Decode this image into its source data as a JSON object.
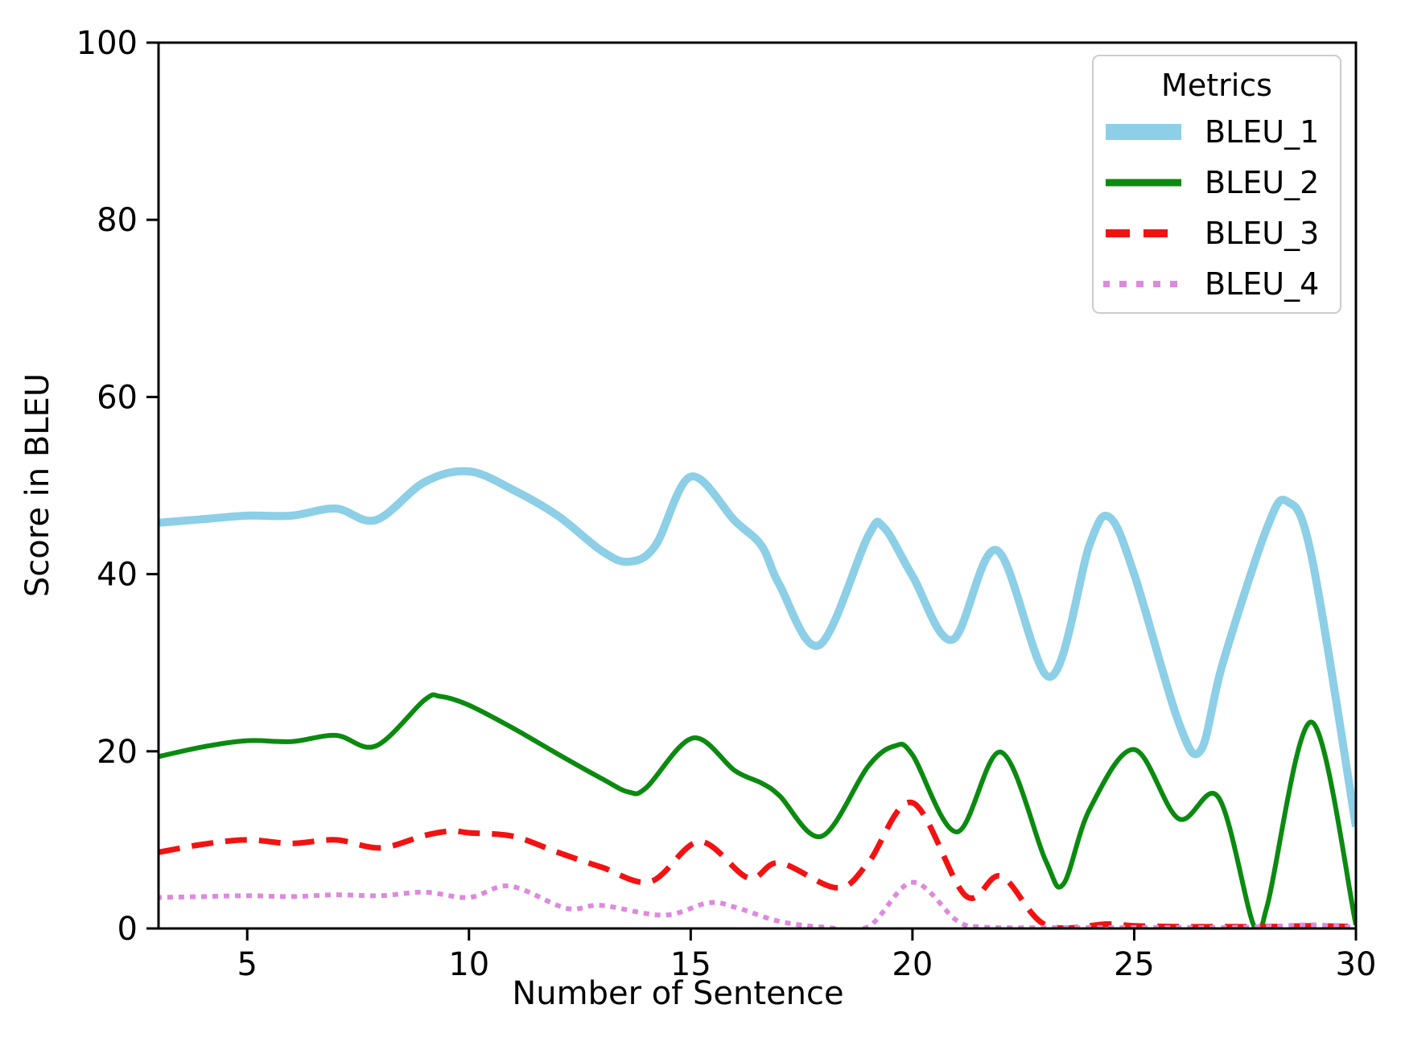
{
  "figure": {
    "background": "#ffffff",
    "text_color": "#000000",
    "axis_color": "#000000"
  },
  "legend": {
    "title": "Metrics"
  },
  "chart_data": {
    "type": "line",
    "title": "",
    "xlabel": "Number of Sentence",
    "ylabel": "Score in BLEU",
    "xlim": [
      3,
      30
    ],
    "ylim": [
      0,
      100
    ],
    "xticks": [
      5,
      10,
      15,
      20,
      25,
      30
    ],
    "yticks": [
      0,
      20,
      40,
      60,
      80,
      100
    ],
    "grid": false,
    "legend_title": "Metrics",
    "legend_position": "upper right",
    "series": [
      {
        "name": "BLEU_1",
        "color": "#8ccfe6",
        "style": "solid",
        "width": 10,
        "points": [
          [
            3,
            45.8
          ],
          [
            4,
            46.2
          ],
          [
            5,
            46.6
          ],
          [
            6,
            46.6
          ],
          [
            7,
            47.4
          ],
          [
            7.9,
            46.1
          ],
          [
            9,
            50.4
          ],
          [
            10,
            51.6
          ],
          [
            11,
            49.5
          ],
          [
            12,
            46.6
          ],
          [
            13,
            42.6
          ],
          [
            13.6,
            41.4
          ],
          [
            14.2,
            43.2
          ],
          [
            15,
            51.0
          ],
          [
            16,
            46.0
          ],
          [
            16.6,
            43.2
          ],
          [
            17,
            38.8
          ],
          [
            17.9,
            32.0
          ],
          [
            19,
            44.3
          ],
          [
            19.35,
            45.3
          ],
          [
            20,
            39.8
          ],
          [
            20.9,
            32.6
          ],
          [
            21.9,
            42.7
          ],
          [
            23.1,
            28.4
          ],
          [
            24,
            43.4
          ],
          [
            24.45,
            46.4
          ],
          [
            25,
            40.0
          ],
          [
            26,
            23.3
          ],
          [
            26.5,
            20.1
          ],
          [
            27,
            30.0
          ],
          [
            28,
            45.3
          ],
          [
            28.45,
            48.2
          ],
          [
            29,
            42.0
          ],
          [
            30,
            11.5
          ]
        ]
      },
      {
        "name": "BLEU_2",
        "color": "#0b8a10",
        "style": "solid",
        "width": 6,
        "points": [
          [
            3,
            19.4
          ],
          [
            4,
            20.5
          ],
          [
            5,
            21.2
          ],
          [
            6,
            21.1
          ],
          [
            7,
            21.8
          ],
          [
            7.9,
            20.6
          ],
          [
            9,
            25.8
          ],
          [
            9.35,
            26.2
          ],
          [
            10,
            25.2
          ],
          [
            11,
            22.6
          ],
          [
            12,
            19.7
          ],
          [
            13,
            16.9
          ],
          [
            13.6,
            15.4
          ],
          [
            14,
            15.9
          ],
          [
            15.05,
            21.5
          ],
          [
            16,
            17.8
          ],
          [
            16.6,
            16.4
          ],
          [
            17,
            15.0
          ],
          [
            17.95,
            10.4
          ],
          [
            19,
            18.3
          ],
          [
            19.6,
            20.6
          ],
          [
            20,
            19.6
          ],
          [
            21,
            10.9
          ],
          [
            22,
            19.9
          ],
          [
            23,
            7.7
          ],
          [
            23.4,
            5.0
          ],
          [
            24,
            13.5
          ],
          [
            25,
            20.2
          ],
          [
            26,
            12.4
          ],
          [
            26.9,
            14.8
          ],
          [
            27.7,
            0.3
          ],
          [
            28,
            2.6
          ],
          [
            29,
            23.3
          ],
          [
            30,
            0.4
          ]
        ]
      },
      {
        "name": "BLEU_3",
        "color": "#f31212",
        "style": "dashed",
        "width": 7,
        "points": [
          [
            3,
            8.6
          ],
          [
            4,
            9.5
          ],
          [
            5,
            10.0
          ],
          [
            6,
            9.6
          ],
          [
            7,
            10.0
          ],
          [
            8,
            9.1
          ],
          [
            9,
            10.5
          ],
          [
            9.6,
            11.0
          ],
          [
            10,
            10.8
          ],
          [
            11,
            10.4
          ],
          [
            12,
            8.6
          ],
          [
            13,
            6.9
          ],
          [
            14.1,
            5.3
          ],
          [
            15.2,
            9.8
          ],
          [
            16.3,
            5.7
          ],
          [
            17,
            7.4
          ],
          [
            18.3,
            4.6
          ],
          [
            19,
            7.4
          ],
          [
            20,
            14.2
          ],
          [
            21.2,
            3.7
          ],
          [
            22,
            5.9
          ],
          [
            23,
            0.4
          ],
          [
            24.4,
            0.5
          ],
          [
            25,
            0.3
          ],
          [
            26,
            0.2
          ],
          [
            27,
            0.2
          ],
          [
            28,
            0.2
          ],
          [
            29,
            0.3
          ],
          [
            30,
            0.2
          ]
        ]
      },
      {
        "name": "BLEU_4",
        "color": "#dd8add",
        "style": "dotted",
        "width": 6,
        "points": [
          [
            3,
            3.5
          ],
          [
            4,
            3.6
          ],
          [
            5,
            3.7
          ],
          [
            6,
            3.6
          ],
          [
            7,
            3.8
          ],
          [
            8,
            3.7
          ],
          [
            9,
            4.1
          ],
          [
            10,
            3.5
          ],
          [
            10.9,
            4.8
          ],
          [
            12,
            2.6
          ],
          [
            12.4,
            2.2
          ],
          [
            13,
            2.6
          ],
          [
            14.4,
            1.5
          ],
          [
            15.4,
            2.9
          ],
          [
            16,
            2.4
          ],
          [
            17,
            0.8
          ],
          [
            18,
            0.15
          ],
          [
            19,
            0.2
          ],
          [
            20,
            5.2
          ],
          [
            21,
            0.9
          ],
          [
            21.6,
            0.15
          ],
          [
            23,
            0.1
          ],
          [
            24,
            0.1
          ],
          [
            25,
            0.1
          ],
          [
            26,
            0.1
          ],
          [
            27,
            0.1
          ],
          [
            28,
            0.2
          ],
          [
            29,
            0.4
          ],
          [
            30,
            0.1
          ]
        ]
      }
    ]
  }
}
